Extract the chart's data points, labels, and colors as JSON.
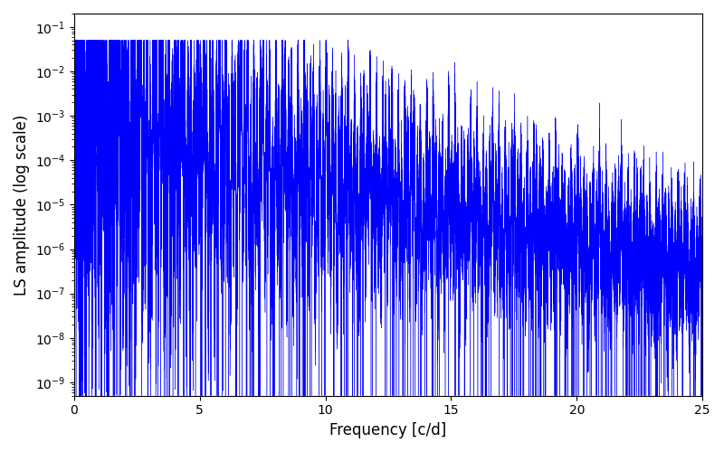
{
  "title": "",
  "xlabel": "Frequency [c/d]",
  "ylabel": "LS amplitude (log scale)",
  "xlim": [
    0,
    25
  ],
  "ylim": [
    5e-10,
    0.2
  ],
  "line_color": "#0000ff",
  "background_color": "#ffffff",
  "figsize": [
    8.0,
    5.0
  ],
  "dpi": 100,
  "freq_max": 25.0,
  "n_points": 80000,
  "seed": 42
}
